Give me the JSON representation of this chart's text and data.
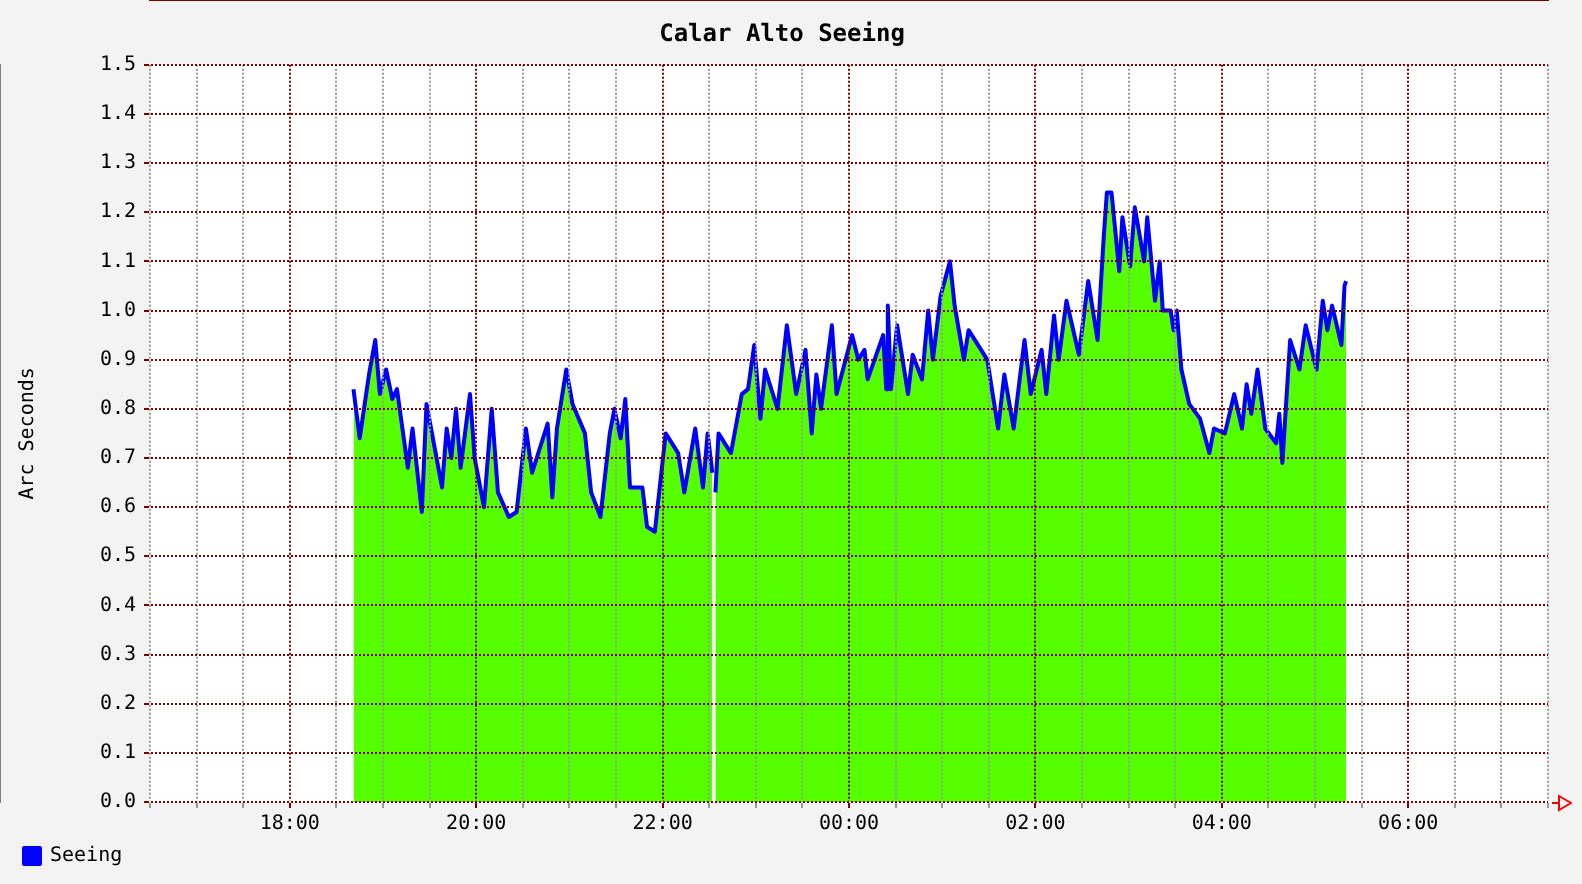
{
  "chart_data": {
    "type": "area",
    "title": "Calar Alto Seeing",
    "ylabel": "Arc Seconds",
    "x": [
      "--01-01T18:41",
      "--01-01T18:45",
      "--01-01T18:51",
      "--01-01T18:55",
      "--01-01T18:58",
      "--01-01T19:02",
      "--01-01T19:06",
      "--01-01T19:09",
      "--01-01T19:16",
      "--01-01T19:19",
      "--01-01T19:25",
      "--01-01T19:28",
      "--01-01T19:38",
      "--01-01T19:41",
      "--01-01T19:44",
      "--01-01T19:47",
      "--01-01T19:50",
      "--01-01T19:56",
      "--01-01T19:59",
      "--01-01T20:05",
      "--01-01T20:10",
      "--01-01T20:14",
      "--01-01T20:21",
      "--01-01T20:26",
      "--01-01T20:32",
      "--01-01T20:36",
      "--01-01T20:46",
      "--01-01T20:49",
      "--01-01T20:52",
      "--01-01T20:58",
      "--01-01T21:02",
      "--01-01T21:10",
      "--01-01T21:14",
      "--01-01T21:20",
      "--01-01T21:26",
      "--01-01T21:29",
      "--01-01T21:33",
      "--01-01T21:36",
      "--01-01T21:39",
      "--01-01T21:47",
      "--01-01T21:50",
      "--01-01T21:55",
      "--01-01T22:02",
      "--01-01T22:10",
      "--01-01T22:14",
      "--01-01T22:21",
      "--01-01T22:26",
      "--01-01T22:29",
      "--01-01T22:32",
      "--01-01T22:33",
      "--01-01T22:34",
      "--01-01T22:36",
      "--01-01T22:44",
      "--01-01T22:51",
      "--01-01T22:55",
      "--01-01T22:59",
      "--01-01T23:03",
      "--01-01T23:06",
      "--01-01T23:14",
      "--01-01T23:20",
      "--01-01T23:26",
      "--01-01T23:32",
      "--01-01T23:36",
      "--01-01T23:39",
      "--01-01T23:42",
      "--01-01T23:49",
      "--01-01T23:52",
      "--01-02T00:02",
      "--01-02T00:06",
      "--01-02T00:10",
      "--01-02T00:12",
      "--01-02T00:22",
      "--01-02T00:24",
      "--01-02T00:25",
      "--01-02T00:27",
      "--01-02T00:31",
      "--01-02T00:38",
      "--01-02T00:41",
      "--01-02T00:47",
      "--01-02T00:51",
      "--01-02T00:54",
      "--01-02T00:59",
      "--01-02T01:05",
      "--01-02T01:08",
      "--01-02T01:14",
      "--01-02T01:17",
      "--01-02T01:29",
      "--01-02T01:36",
      "--01-02T01:40",
      "--01-02T01:46",
      "--01-02T01:53",
      "--01-02T01:57",
      "--01-02T02:04",
      "--01-02T02:07",
      "--01-02T02:12",
      "--01-02T02:15",
      "--01-02T02:20",
      "--01-02T02:28",
      "--01-02T02:34",
      "--01-02T02:40",
      "--01-02T02:44",
      "--01-02T02:46",
      "--01-02T02:49",
      "--01-02T02:54",
      "--01-02T02:56",
      "--01-02T03:01",
      "--01-02T03:04",
      "--01-02T03:10",
      "--01-02T03:12",
      "--01-02T03:17",
      "--01-02T03:20",
      "--01-02T03:22",
      "--01-02T03:27",
      "--01-02T03:29",
      "--01-02T03:31",
      "--01-02T03:34",
      "--01-02T03:39",
      "--01-02T03:46",
      "--01-02T03:52",
      "--01-02T03:55",
      "--01-02T04:02",
      "--01-02T04:08",
      "--01-02T04:13",
      "--01-02T04:16",
      "--01-02T04:19",
      "--01-02T04:23",
      "--01-02T04:28",
      "--01-02T04:35",
      "--01-02T04:37",
      "--01-02T04:39",
      "--01-02T04:41",
      "--01-02T04:44",
      "--01-02T04:50",
      "--01-02T04:54",
      "--01-02T05:01",
      "--01-02T05:05",
      "--01-02T05:08",
      "--01-02T05:11",
      "--01-02T05:17",
      "--01-02T05:19",
      "--01-02T05:20"
    ],
    "series": [
      {
        "color": "#55ff00",
        "values": [
          0.84,
          0.74,
          0.87,
          0.94,
          0.83,
          0.88,
          0.82,
          0.84,
          0.68,
          0.76,
          0.59,
          0.81,
          0.64,
          0.76,
          0.7,
          0.8,
          0.68,
          0.83,
          0.7,
          0.6,
          0.8,
          0.63,
          0.58,
          0.59,
          0.76,
          0.67,
          0.77,
          0.62,
          0.76,
          0.88,
          0.81,
          0.75,
          0.63,
          0.58,
          0.75,
          0.8,
          0.74,
          0.82,
          0.64,
          0.64,
          0.56,
          0.55,
          0.75,
          0.71,
          0.63,
          0.76,
          0.64,
          0.75,
          0.67,
          null,
          0.63,
          0.75,
          0.71,
          0.83,
          0.84,
          0.93,
          0.78,
          0.88,
          0.8,
          0.97,
          0.83,
          0.92,
          0.75,
          0.87,
          0.8,
          0.97,
          0.83,
          0.95,
          0.9,
          0.92,
          0.86,
          0.95,
          0.84,
          1.01,
          0.84,
          0.97,
          0.83,
          0.91,
          0.86,
          1.0,
          0.9,
          1.03,
          1.1,
          1.01,
          0.9,
          0.96,
          0.9,
          0.76,
          0.87,
          0.76,
          0.94,
          0.83,
          0.92,
          0.83,
          0.99,
          0.9,
          1.02,
          0.91,
          1.06,
          0.94,
          1.15,
          1.24,
          1.24,
          1.08,
          1.19,
          1.09,
          1.21,
          1.1,
          1.19,
          1.02,
          1.1,
          1.0,
          1.0,
          0.96,
          1.0,
          0.88,
          0.81,
          0.78,
          0.71,
          0.76,
          0.75,
          0.83,
          0.76,
          0.85,
          0.79,
          0.88,
          0.76,
          0.73,
          0.79,
          0.69,
          0.79,
          0.94,
          0.88,
          0.97,
          0.88,
          1.02,
          0.96,
          1.01,
          0.93,
          1.05,
          1.06
        ]
      },
      {
        "type": "line",
        "name": "Seeing",
        "color": "#0000ff",
        "values": [
          0.84,
          0.74,
          0.87,
          0.94,
          0.83,
          0.88,
          0.82,
          0.84,
          0.68,
          0.76,
          0.59,
          0.81,
          0.64,
          0.76,
          0.7,
          0.8,
          0.68,
          0.83,
          0.7,
          0.6,
          0.8,
          0.63,
          0.58,
          0.59,
          0.76,
          0.67,
          0.77,
          0.62,
          0.76,
          0.88,
          0.81,
          0.75,
          0.63,
          0.58,
          0.75,
          0.8,
          0.74,
          0.82,
          0.64,
          0.64,
          0.56,
          0.55,
          0.75,
          0.71,
          0.63,
          0.76,
          0.64,
          0.75,
          0.67,
          null,
          0.63,
          0.75,
          0.71,
          0.83,
          0.84,
          0.93,
          0.78,
          0.88,
          0.8,
          0.97,
          0.83,
          0.92,
          0.75,
          0.87,
          0.8,
          0.97,
          0.83,
          0.95,
          0.9,
          0.92,
          0.86,
          0.95,
          0.84,
          1.01,
          0.84,
          0.97,
          0.83,
          0.91,
          0.86,
          1.0,
          0.9,
          1.03,
          1.1,
          1.01,
          0.9,
          0.96,
          0.9,
          0.76,
          0.87,
          0.76,
          0.94,
          0.83,
          0.92,
          0.83,
          0.99,
          0.9,
          1.02,
          0.91,
          1.06,
          0.94,
          1.15,
          1.24,
          1.24,
          1.08,
          1.19,
          1.09,
          1.21,
          1.1,
          1.19,
          1.02,
          1.1,
          1.0,
          1.0,
          0.96,
          1.0,
          0.88,
          0.81,
          0.78,
          0.71,
          0.76,
          0.75,
          0.83,
          0.76,
          0.85,
          0.79,
          0.88,
          0.76,
          0.73,
          0.79,
          0.69,
          0.79,
          0.94,
          0.88,
          0.97,
          0.88,
          1.02,
          0.96,
          1.01,
          0.93,
          1.05,
          1.06
        ]
      }
    ],
    "xlim": [
      "--01-01T16:30",
      "--01-02T07:30"
    ],
    "xticks": [
      {
        "value": "--01-01T16:30",
        "label": null
      },
      {
        "value": "--01-01T17:00",
        "label": null
      },
      {
        "value": "--01-01T17:30",
        "label": null
      },
      {
        "value": "--01-01T18:00",
        "label": "18:00"
      },
      {
        "value": "--01-01T18:30",
        "label": null
      },
      {
        "value": "--01-01T19:00",
        "label": null
      },
      {
        "value": "--01-01T19:30",
        "label": null
      },
      {
        "value": "--01-01T20:00",
        "label": "20:00"
      },
      {
        "value": "--01-01T20:30",
        "label": null
      },
      {
        "value": "--01-01T21:00",
        "label": null
      },
      {
        "value": "--01-01T21:30",
        "label": null
      },
      {
        "value": "--01-01T22:00",
        "label": "22:00"
      },
      {
        "value": "--01-01T22:30",
        "label": null
      },
      {
        "value": "--01-01T23:00",
        "label": null
      },
      {
        "value": "--01-01T23:30",
        "label": null
      },
      {
        "value": "--01-02T00:00",
        "label": "00:00"
      },
      {
        "value": "--01-02T00:30",
        "label": null
      },
      {
        "value": "--01-02T01:00",
        "label": null
      },
      {
        "value": "--01-02T01:30",
        "label": null
      },
      {
        "value": "--01-02T02:00",
        "label": "02:00"
      },
      {
        "value": "--01-02T02:30",
        "label": null
      },
      {
        "value": "--01-02T03:00",
        "label": null
      },
      {
        "value": "--01-02T03:30",
        "label": null
      },
      {
        "value": "--01-02T04:00",
        "label": "04:00"
      },
      {
        "value": "--01-02T04:30",
        "label": null
      },
      {
        "value": "--01-02T05:00",
        "label": null
      },
      {
        "value": "--01-02T05:30",
        "label": null
      },
      {
        "value": "--01-02T06:00",
        "label": "06:00"
      },
      {
        "value": "--01-02T06:30",
        "label": null
      },
      {
        "value": "--01-02T07:00",
        "label": null
      },
      {
        "value": "--01-02T07:30",
        "label": null
      }
    ],
    "ylim": [
      0,
      1.5
    ],
    "yticks": [
      {
        "value": 0,
        "label": "0.0"
      },
      0.1,
      0.2,
      0.3,
      0.4,
      0.5,
      0.6,
      0.7,
      0.8,
      0.9,
      {
        "value": 1,
        "label": "1.0"
      },
      1.1,
      1.2,
      1.3,
      1.4,
      1.5
    ],
    "grid": true,
    "legend": "bottom left"
  }
}
